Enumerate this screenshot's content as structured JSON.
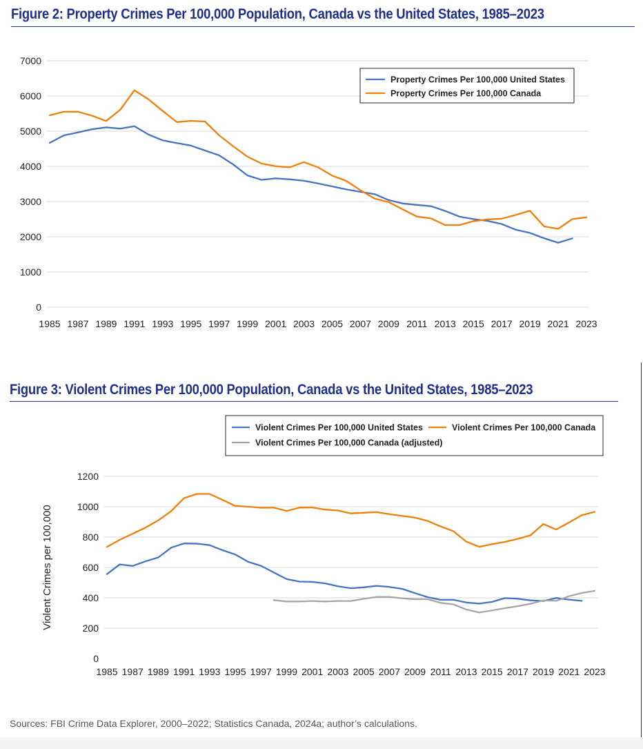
{
  "figure2": {
    "title": "Figure 2: Property Crimes Per 100,000 Population, Canada vs the United States, 1985–2023"
  },
  "figure3": {
    "title": "Figure 3: Violent Crimes Per 100,000 Population, Canada vs the United States, 1985–2023"
  },
  "sources": "Sources: FBI Crime Data Explorer, 2000–2022; Statistics Canada, 2024a; author’s calculations.",
  "chart_data": [
    {
      "type": "line",
      "title": "Figure 2: Property Crimes Per 100,000 Population, Canada vs the United States, 1985–2023",
      "xlabel": "",
      "ylabel": "",
      "x": [
        1985,
        1986,
        1987,
        1988,
        1989,
        1990,
        1991,
        1992,
        1993,
        1994,
        1995,
        1996,
        1997,
        1998,
        1999,
        2000,
        2001,
        2002,
        2003,
        2004,
        2005,
        2006,
        2007,
        2008,
        2009,
        2010,
        2011,
        2012,
        2013,
        2014,
        2015,
        2016,
        2017,
        2018,
        2019,
        2020,
        2021,
        2022,
        2023
      ],
      "x_tick_labels": [
        "1985",
        "1987",
        "1989",
        "1991",
        "1993",
        "1995",
        "1997",
        "1999",
        "2001",
        "2003",
        "2005",
        "2007",
        "2009",
        "2011",
        "2013",
        "2015",
        "2017",
        "2019",
        "2021",
        "2023"
      ],
      "ylim": [
        0,
        7000
      ],
      "y_ticks": [
        0,
        1000,
        2000,
        3000,
        4000,
        5000,
        6000,
        7000
      ],
      "grid": true,
      "legend_position": "top-right",
      "series": [
        {
          "name": "Property Crimes Per 100,000 United States",
          "color": "#4472c4",
          "values": [
            4666,
            4881,
            4963,
            5054,
            5107,
            5073,
            5140,
            4903,
            4740,
            4660,
            4591,
            4451,
            4311,
            4053,
            3743,
            3618,
            3658,
            3631,
            3591,
            3515,
            3431,
            3346,
            3276,
            3212,
            3041,
            2946,
            2905,
            2868,
            2734,
            2574,
            2501,
            2451,
            2362,
            2200,
            2110,
            1958,
            1832,
            1954,
            null
          ]
        },
        {
          "name": "Property Crimes Per 100,000 Canada",
          "color": "#f07f09",
          "values": [
            5451,
            5550,
            5553,
            5439,
            5289,
            5610,
            6160,
            5904,
            5575,
            5258,
            5292,
            5274,
            4880,
            4569,
            4276,
            4081,
            4004,
            3975,
            4121,
            3972,
            3737,
            3588,
            3321,
            3087,
            2987,
            2778,
            2575,
            2521,
            2332,
            2331,
            2446,
            2493,
            2513,
            2620,
            2739,
            2294,
            2226,
            2502,
            2553
          ]
        }
      ]
    },
    {
      "type": "line",
      "title": "Figure 3: Violent Crimes Per 100,000 Population, Canada vs the United States, 1985–2023",
      "xlabel": "",
      "ylabel": "Violent Crimes per 100,000",
      "x": [
        1985,
        1986,
        1987,
        1988,
        1989,
        1990,
        1991,
        1992,
        1993,
        1994,
        1995,
        1996,
        1997,
        1998,
        1999,
        2000,
        2001,
        2002,
        2003,
        2004,
        2005,
        2006,
        2007,
        2008,
        2009,
        2010,
        2011,
        2012,
        2013,
        2014,
        2015,
        2016,
        2017,
        2018,
        2019,
        2020,
        2021,
        2022,
        2023
      ],
      "x_tick_labels": [
        "1985",
        "1987",
        "1989",
        "1991",
        "1993",
        "1995",
        "1997",
        "1999",
        "2001",
        "2003",
        "2005",
        "2007",
        "2009",
        "2011",
        "2013",
        "2015",
        "2017",
        "2019",
        "2021",
        "2023"
      ],
      "ylim": [
        0,
        1200
      ],
      "y_ticks": [
        0,
        200,
        400,
        600,
        800,
        1000,
        1200
      ],
      "grid": true,
      "legend_position": "top",
      "series": [
        {
          "name": "Violent Crimes Per 100,000 United States",
          "color": "#4472c4",
          "values": [
            556,
            620,
            610,
            640,
            666,
            730,
            758,
            757,
            747,
            714,
            685,
            637,
            611,
            567,
            523,
            507,
            505,
            495,
            476,
            463,
            469,
            479,
            472,
            459,
            431,
            404,
            387,
            387,
            369,
            362,
            373,
            398,
            394,
            383,
            379,
            399,
            388,
            380,
            null
          ]
        },
        {
          "name": "Violent Crimes Per 100,000 Canada",
          "color": "#f07f09",
          "values": [
            735,
            782,
            822,
            862,
            910,
            970,
            1056,
            1084,
            1084,
            1045,
            1005,
            1000,
            993,
            994,
            972,
            994,
            995,
            981,
            975,
            956,
            960,
            964,
            951,
            939,
            928,
            906,
            870,
            838,
            770,
            736,
            753,
            768,
            788,
            812,
            886,
            850,
            896,
            944,
            966
          ]
        },
        {
          "name": "Violent Crimes Per 100,000 Canada (adjusted)",
          "color": "#a5a5a5",
          "values": [
            null,
            null,
            null,
            null,
            null,
            null,
            null,
            null,
            null,
            null,
            null,
            null,
            null,
            385,
            376,
            376,
            379,
            376,
            379,
            379,
            393,
            406,
            406,
            397,
            391,
            391,
            367,
            357,
            323,
            303,
            317,
            332,
            345,
            361,
            383,
            380,
            411,
            432,
            446
          ]
        }
      ]
    }
  ]
}
